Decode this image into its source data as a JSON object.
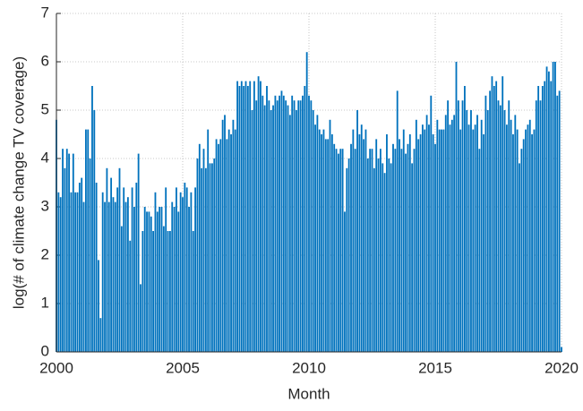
{
  "chart_data": {
    "type": "bar",
    "xlabel": "Month",
    "ylabel": "log(# of climate change TV coverage)",
    "color": "#0072bd",
    "grid": true,
    "xlim": [
      2000,
      2020
    ],
    "xticks": [
      2000,
      2005,
      2010,
      2015,
      2020
    ],
    "ylim": [
      0,
      7
    ],
    "yticks": [
      0,
      1,
      2,
      3,
      4,
      5,
      6,
      7
    ],
    "x": [
      2000,
      2000.083,
      2000.167,
      2000.25,
      2000.333,
      2000.417,
      2000.5,
      2000.583,
      2000.667,
      2000.75,
      2000.833,
      2000.917,
      2001,
      2001.083,
      2001.167,
      2001.25,
      2001.333,
      2001.417,
      2001.5,
      2001.583,
      2001.667,
      2001.75,
      2001.833,
      2001.917,
      2002,
      2002.083,
      2002.167,
      2002.25,
      2002.333,
      2002.417,
      2002.5,
      2002.583,
      2002.667,
      2002.75,
      2002.833,
      2002.917,
      2003,
      2003.083,
      2003.167,
      2003.25,
      2003.333,
      2003.417,
      2003.5,
      2003.583,
      2003.667,
      2003.75,
      2003.833,
      2003.917,
      2004,
      2004.083,
      2004.167,
      2004.25,
      2004.333,
      2004.417,
      2004.5,
      2004.583,
      2004.667,
      2004.75,
      2004.833,
      2004.917,
      2005,
      2005.083,
      2005.167,
      2005.25,
      2005.333,
      2005.417,
      2005.5,
      2005.583,
      2005.667,
      2005.75,
      2005.833,
      2005.917,
      2006,
      2006.083,
      2006.167,
      2006.25,
      2006.333,
      2006.417,
      2006.5,
      2006.583,
      2006.667,
      2006.75,
      2006.833,
      2006.917,
      2007,
      2007.083,
      2007.167,
      2007.25,
      2007.333,
      2007.417,
      2007.5,
      2007.583,
      2007.667,
      2007.75,
      2007.833,
      2007.917,
      2008,
      2008.083,
      2008.167,
      2008.25,
      2008.333,
      2008.417,
      2008.5,
      2008.583,
      2008.667,
      2008.75,
      2008.833,
      2008.917,
      2009,
      2009.083,
      2009.167,
      2009.25,
      2009.333,
      2009.417,
      2009.5,
      2009.583,
      2009.667,
      2009.75,
      2009.833,
      2009.917,
      2010,
      2010.083,
      2010.167,
      2010.25,
      2010.333,
      2010.417,
      2010.5,
      2010.583,
      2010.667,
      2010.75,
      2010.833,
      2010.917,
      2011,
      2011.083,
      2011.167,
      2011.25,
      2011.333,
      2011.417,
      2011.5,
      2011.583,
      2011.667,
      2011.75,
      2011.833,
      2011.917,
      2012,
      2012.083,
      2012.167,
      2012.25,
      2012.333,
      2012.417,
      2012.5,
      2012.583,
      2012.667,
      2012.75,
      2012.833,
      2012.917,
      2013,
      2013.083,
      2013.167,
      2013.25,
      2013.333,
      2013.417,
      2013.5,
      2013.583,
      2013.667,
      2013.75,
      2013.833,
      2013.917,
      2014,
      2014.083,
      2014.167,
      2014.25,
      2014.333,
      2014.417,
      2014.5,
      2014.583,
      2014.667,
      2014.75,
      2014.833,
      2014.917,
      2015,
      2015.083,
      2015.167,
      2015.25,
      2015.333,
      2015.417,
      2015.5,
      2015.583,
      2015.667,
      2015.75,
      2015.833,
      2015.917,
      2016,
      2016.083,
      2016.167,
      2016.25,
      2016.333,
      2016.417,
      2016.5,
      2016.583,
      2016.667,
      2016.75,
      2016.833,
      2016.917,
      2017,
      2017.083,
      2017.167,
      2017.25,
      2017.333,
      2017.417,
      2017.5,
      2017.583,
      2017.667,
      2017.75,
      2017.833,
      2017.917,
      2018,
      2018.083,
      2018.167,
      2018.25,
      2018.333,
      2018.417,
      2018.5,
      2018.583,
      2018.667,
      2018.75,
      2018.833,
      2018.917,
      2019,
      2019.083,
      2019.167,
      2019.25,
      2019.333,
      2019.417,
      2019.5,
      2019.583,
      2019.667,
      2019.75,
      2019.833,
      2019.917,
      2020
    ],
    "values": [
      4.8,
      3.3,
      3.2,
      4.2,
      3.8,
      4.2,
      4.1,
      3.3,
      4.1,
      3.3,
      3.3,
      3.5,
      3.6,
      3.1,
      4.6,
      4.6,
      4.0,
      5.5,
      5.0,
      3.5,
      1.9,
      0.7,
      3.3,
      3.1,
      3.8,
      3.1,
      3.6,
      3.2,
      3.1,
      3.4,
      3.8,
      2.6,
      3.4,
      3.1,
      3.2,
      2.3,
      3.4,
      3.0,
      3.5,
      4.1,
      1.4,
      2.5,
      3.0,
      2.9,
      2.9,
      2.8,
      2.5,
      3.3,
      2.9,
      3.0,
      3.0,
      2.6,
      3.4,
      2.5,
      2.5,
      3.1,
      3.0,
      3.4,
      2.9,
      3.3,
      3.2,
      3.5,
      3.4,
      3.0,
      3.3,
      2.5,
      3.4,
      4.0,
      4.3,
      3.8,
      4.2,
      3.8,
      4.6,
      3.9,
      3.9,
      4.0,
      4.4,
      4.3,
      4.4,
      4.8,
      4.9,
      4.4,
      4.6,
      4.5,
      4.8,
      4.6,
      5.6,
      5.5,
      5.6,
      5.5,
      5.6,
      5.5,
      5.6,
      5.0,
      5.6,
      5.2,
      5.7,
      5.6,
      5.3,
      5.1,
      5.5,
      5.2,
      5.0,
      5.1,
      5.3,
      5.2,
      5.3,
      5.4,
      5.3,
      5.2,
      5.1,
      4.9,
      5.3,
      5.2,
      5.0,
      5.2,
      5.2,
      5.3,
      5.5,
      6.2,
      5.3,
      5.2,
      5.0,
      4.7,
      4.9,
      4.6,
      4.5,
      4.6,
      4.4,
      4.4,
      4.8,
      4.5,
      4.3,
      4.2,
      4.1,
      4.2,
      4.2,
      2.9,
      3.8,
      4.0,
      4.3,
      4.6,
      4.2,
      5.0,
      4.5,
      4.7,
      4.4,
      4.6,
      4.0,
      4.2,
      4.2,
      3.8,
      4.4,
      4.0,
      4.2,
      3.9,
      3.7,
      4.5,
      4.0,
      3.9,
      4.3,
      4.2,
      5.4,
      4.4,
      4.2,
      4.6,
      4.1,
      4.3,
      4.5,
      3.9,
      4.2,
      4.8,
      4.4,
      4.5,
      4.7,
      4.6,
      4.9,
      4.7,
      5.3,
      4.5,
      4.3,
      4.8,
      4.6,
      4.6,
      4.6,
      4.9,
      5.2,
      4.7,
      4.8,
      4.9,
      6.0,
      5.2,
      4.6,
      5.2,
      5.5,
      5.0,
      4.7,
      5.0,
      4.6,
      4.7,
      4.9,
      4.2,
      4.8,
      4.5,
      5.3,
      5.0,
      5.4,
      5.7,
      5.5,
      5.6,
      5.2,
      5.1,
      5.7,
      5.0,
      4.7,
      5.2,
      4.8,
      4.5,
      4.9,
      4.6,
      3.9,
      4.2,
      4.4,
      4.6,
      4.7,
      4.8,
      4.5,
      4.6,
      5.2,
      5.5,
      5.2,
      5.5,
      5.6,
      5.9,
      5.8,
      5.6,
      6.0,
      6.0,
      5.3,
      5.4,
      0.1
    ]
  }
}
